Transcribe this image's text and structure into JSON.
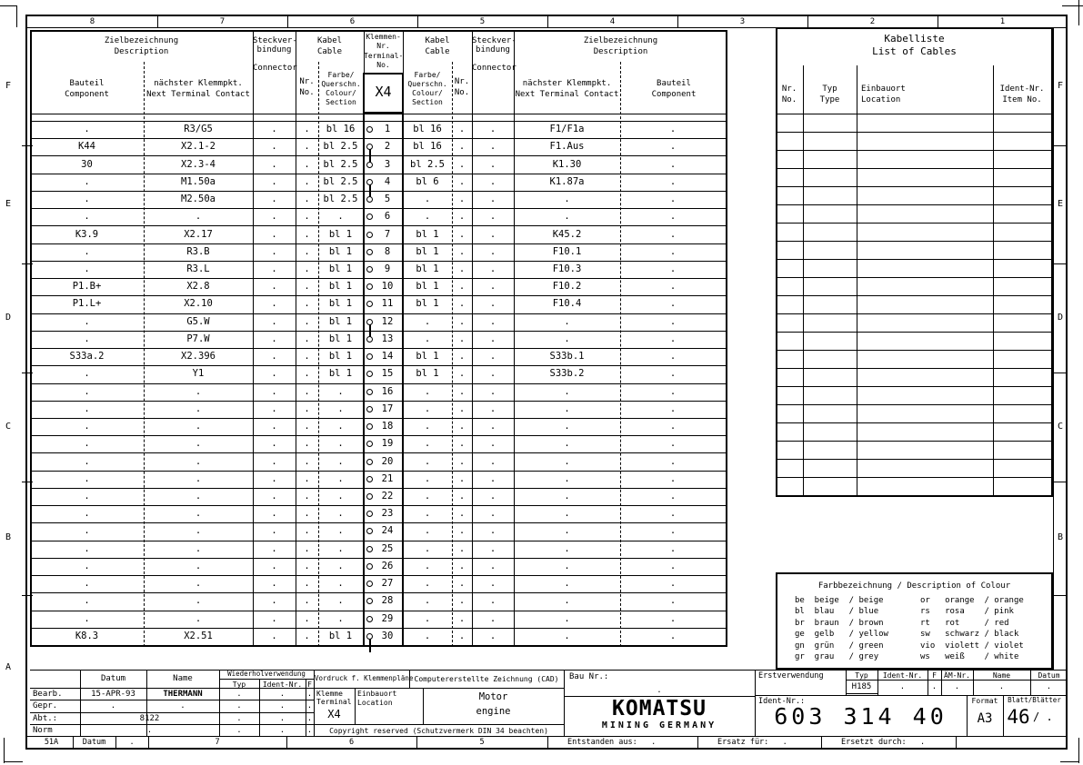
{
  "frame": {
    "top_zones": [
      "8",
      "7",
      "6",
      "5",
      "4",
      "3",
      "2",
      "1"
    ],
    "left_letters": [
      "F",
      "E",
      "D",
      "C",
      "B",
      "A"
    ],
    "right_letters": [
      "F",
      "E",
      "D",
      "C",
      "B"
    ],
    "bottom_cells": [
      "51A",
      "Datum",
      ".",
      "7",
      "6",
      "5",
      "Entstanden aus:   .",
      "Ersatz für:   .",
      "Ersetzt durch:   ."
    ]
  },
  "terminal_table": {
    "header": {
      "dest_title": "Zielbezeichnung",
      "dest_sub": "Description",
      "component_de": "Bauteil",
      "component_en": "Component",
      "next_de": "nächster Klemmpkt.",
      "next_en": "Next Terminal Contact",
      "connector_l1": "Steckver-",
      "connector_l2": "bindung",
      "connector_l3": "Connector",
      "cable_de": "Kabel",
      "cable_en": "Cable",
      "nr_de": "Nr.",
      "nr_en": "No.",
      "colour_l1": "Farbe/",
      "colour_l2": "Querschn.",
      "colour_l3": "Colour/",
      "colour_l4": "Section",
      "terminal_l1": "Klemmen-",
      "terminal_l2": "Nr.",
      "terminal_l3": "Terminal-",
      "terminal_l4": "No.",
      "terminal_id": "X4"
    },
    "rows": [
      [
        ".",
        "R3/G5",
        ".",
        ".",
        "bl 16",
        "1",
        "bl 16",
        ".",
        ".",
        "F1/F1a",
        "."
      ],
      [
        "K44",
        "X2.1-2",
        ".",
        ".",
        "bl 2.5",
        "2",
        "bl 16",
        ".",
        ".",
        "F1.Aus",
        "."
      ],
      [
        "30",
        "X2.3-4",
        ".",
        ".",
        "bl 2.5",
        "3",
        "bl 2.5",
        ".",
        ".",
        "K1.30",
        "."
      ],
      [
        ".",
        "M1.50a",
        ".",
        ".",
        "bl 2.5",
        "4",
        "bl 6",
        ".",
        ".",
        "K1.87a",
        "."
      ],
      [
        ".",
        "M2.50a",
        ".",
        ".",
        "bl 2.5",
        "5",
        ".",
        ".",
        ".",
        ".",
        "."
      ],
      [
        ".",
        ".",
        ".",
        ".",
        ".",
        "6",
        ".",
        ".",
        ".",
        ".",
        "."
      ],
      [
        "K3.9",
        "X2.17",
        ".",
        ".",
        "bl 1",
        "7",
        "bl 1",
        ".",
        ".",
        "K45.2",
        "."
      ],
      [
        ".",
        "R3.B",
        ".",
        ".",
        "bl 1",
        "8",
        "bl 1",
        ".",
        ".",
        "F10.1",
        "."
      ],
      [
        ".",
        "R3.L",
        ".",
        ".",
        "bl 1",
        "9",
        "bl 1",
        ".",
        ".",
        "F10.3",
        "."
      ],
      [
        "P1.B+",
        "X2.8",
        ".",
        ".",
        "bl 1",
        "10",
        "bl 1",
        ".",
        ".",
        "F10.2",
        "."
      ],
      [
        "P1.L+",
        "X2.10",
        ".",
        ".",
        "bl 1",
        "11",
        "bl 1",
        ".",
        ".",
        "F10.4",
        "."
      ],
      [
        ".",
        "G5.W",
        ".",
        ".",
        "bl 1",
        "12",
        ".",
        ".",
        ".",
        ".",
        "."
      ],
      [
        ".",
        "P7.W",
        ".",
        ".",
        "bl 1",
        "13",
        ".",
        ".",
        ".",
        ".",
        "."
      ],
      [
        "S33a.2",
        "X2.396",
        ".",
        ".",
        "bl 1",
        "14",
        "bl 1",
        ".",
        ".",
        "S33b.1",
        "."
      ],
      [
        ".",
        "Y1",
        ".",
        ".",
        "bl 1",
        "15",
        "bl 1",
        ".",
        ".",
        "S33b.2",
        "."
      ],
      [
        ".",
        ".",
        ".",
        ".",
        ".",
        "16",
        ".",
        ".",
        ".",
        ".",
        "."
      ],
      [
        ".",
        ".",
        ".",
        ".",
        ".",
        "17",
        ".",
        ".",
        ".",
        ".",
        "."
      ],
      [
        ".",
        ".",
        ".",
        ".",
        ".",
        "18",
        ".",
        ".",
        ".",
        ".",
        "."
      ],
      [
        ".",
        ".",
        ".",
        ".",
        ".",
        "19",
        ".",
        ".",
        ".",
        ".",
        "."
      ],
      [
        ".",
        ".",
        ".",
        ".",
        ".",
        "20",
        ".",
        ".",
        ".",
        ".",
        "."
      ],
      [
        ".",
        ".",
        ".",
        ".",
        ".",
        "21",
        ".",
        ".",
        ".",
        ".",
        "."
      ],
      [
        ".",
        ".",
        ".",
        ".",
        ".",
        "22",
        ".",
        ".",
        ".",
        ".",
        "."
      ],
      [
        ".",
        ".",
        ".",
        ".",
        ".",
        "23",
        ".",
        ".",
        ".",
        ".",
        "."
      ],
      [
        ".",
        ".",
        ".",
        ".",
        ".",
        "24",
        ".",
        ".",
        ".",
        ".",
        "."
      ],
      [
        ".",
        ".",
        ".",
        ".",
        ".",
        "25",
        ".",
        ".",
        ".",
        ".",
        "."
      ],
      [
        ".",
        ".",
        ".",
        ".",
        ".",
        "26",
        ".",
        ".",
        ".",
        ".",
        "."
      ],
      [
        ".",
        ".",
        ".",
        ".",
        ".",
        "27",
        ".",
        ".",
        ".",
        ".",
        "."
      ],
      [
        ".",
        ".",
        ".",
        ".",
        ".",
        "28",
        ".",
        ".",
        ".",
        ".",
        "."
      ],
      [
        ".",
        ".",
        ".",
        ".",
        ".",
        "29",
        ".",
        ".",
        ".",
        ".",
        "."
      ],
      [
        "K8.3",
        "X2.51",
        ".",
        ".",
        "bl 1",
        "30",
        ".",
        ".",
        ".",
        ".",
        "."
      ]
    ],
    "links": [
      [
        2,
        3
      ],
      [
        4,
        5
      ],
      [
        12,
        13
      ]
    ],
    "tail_row": 30
  },
  "cable_list": {
    "title_de": "Kabelliste",
    "title_en": "List of Cables",
    "col_nr_de": "Nr.",
    "col_nr_en": "No.",
    "col_typ_de": "Typ",
    "col_typ_en": "Type",
    "col_loc_de": "Einbauort",
    "col_loc_en": "Location",
    "col_ident_de": "Ident-Nr.",
    "col_ident_en": "Item No.",
    "empty_rows": 21
  },
  "colour_legend": {
    "title": "Farbbezeichnung / Description of Colour",
    "left": [
      "be  beige  / beige",
      "bl  blau   / blue",
      "br  braun  / brown",
      "ge  gelb   / yellow",
      "gn  grün   / green",
      "gr  grau   / grey"
    ],
    "right": [
      "or   orange  / orange",
      "rs   rosa    / pink",
      "rt   rot     / red",
      "sw   schwarz / black",
      "vio  violett / violet",
      "ws   weiß    / white"
    ]
  },
  "title_block": {
    "left": {
      "datum_h": "Datum",
      "name_h": "Name",
      "wieder": "Wiederholverwendung",
      "wieder_typ": "Typ",
      "wieder_ident": "Ident-Nr.",
      "wieder_f": "F",
      "row_bearb": "Bearb.",
      "row_gepr": "Gepr.",
      "row_abt": "Abt.:",
      "row_norm": "Norm",
      "bearb_datum": "15-APR-93",
      "bearb_name": "THERMANN",
      "gepr_datum": ".",
      "gepr_name": ".",
      "abt_value": "8122",
      "norm_value": ".",
      "dot": "."
    },
    "middle": {
      "vordruck": "Vordruck f. Klemmenpläne",
      "cad": "Computererstellte Zeichnung (CAD)",
      "klemme_de": "Klemme",
      "klemme_en": "Terminal",
      "klemme_id": "X4",
      "einbauort_de": "Einbauort",
      "einbauort_en": "Location",
      "location_de": "Motor",
      "location_en": "engine",
      "copyright": "Copyright reserved (Schutzvermerk DIN 34 beachten)"
    },
    "komatsu": {
      "bau_label": "Bau Nr.:",
      "bau_value": ".",
      "logo_main": "KOMATSU",
      "logo_sub": "MINING GERMANY"
    },
    "right": {
      "erst": "Erstverwendung",
      "cols": [
        "Typ",
        "Ident-Nr.",
        "F",
        "ÄM-Nr.",
        "Name",
        "Datum"
      ],
      "typ_value": "H185",
      "dots": [
        ".",
        ".",
        ".",
        ".",
        "."
      ],
      "ident_label": "Ident-Nr.:",
      "ident_value": "603 314 40",
      "format_label": "Format",
      "format_value": "A3",
      "blatt_label": "Blatt/Blätter",
      "blatt_value": "46",
      "blatt_suffix": "/ ."
    }
  }
}
